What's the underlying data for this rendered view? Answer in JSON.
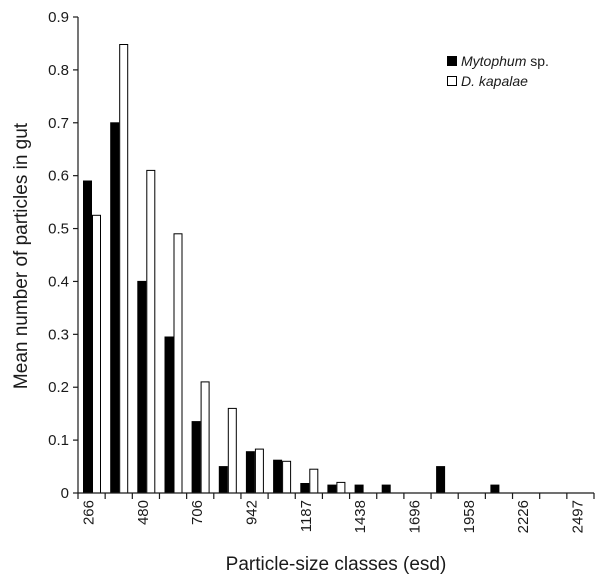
{
  "chart_data": {
    "type": "bar",
    "title": "",
    "xlabel": "Particle-size classes (esd)",
    "ylabel": "Mean number of particles in gut",
    "ylim": [
      0,
      0.9
    ],
    "yticks": [
      "0",
      "0.1",
      "0.2",
      "0.3",
      "0.4",
      "0.5",
      "0.6",
      "0.7",
      "0.8",
      "0.9"
    ],
    "xtick_labels": [
      "266",
      "480",
      "706",
      "942",
      "1187",
      "1438",
      "1696",
      "1958",
      "2226",
      "2497"
    ],
    "grid": false,
    "legend_position": "top-right",
    "series": [
      {
        "name_italic": "Mytophum",
        "name_suffix": " sp.",
        "fill": "#000000",
        "values": [
          0.59,
          0.7,
          0.4,
          0.295,
          0.135,
          0.05,
          0.078,
          0.062,
          0.018,
          0.015,
          0.015,
          0.015,
          0.0,
          0.05,
          0.0,
          0.015,
          0.0,
          0.0,
          0.0
        ]
      },
      {
        "name_italic": "D. kapalae",
        "name_suffix": "",
        "fill": "#ffffff",
        "values": [
          0.525,
          0.848,
          0.61,
          0.49,
          0.21,
          0.16,
          0.083,
          0.06,
          0.045,
          0.02,
          0.0,
          0.0,
          0.0,
          0.0,
          0.0,
          0.0,
          0.0,
          0.0,
          0.0
        ]
      }
    ],
    "colors": {
      "axis": "#1a1a1a",
      "bar_stroke": "#000000"
    }
  }
}
